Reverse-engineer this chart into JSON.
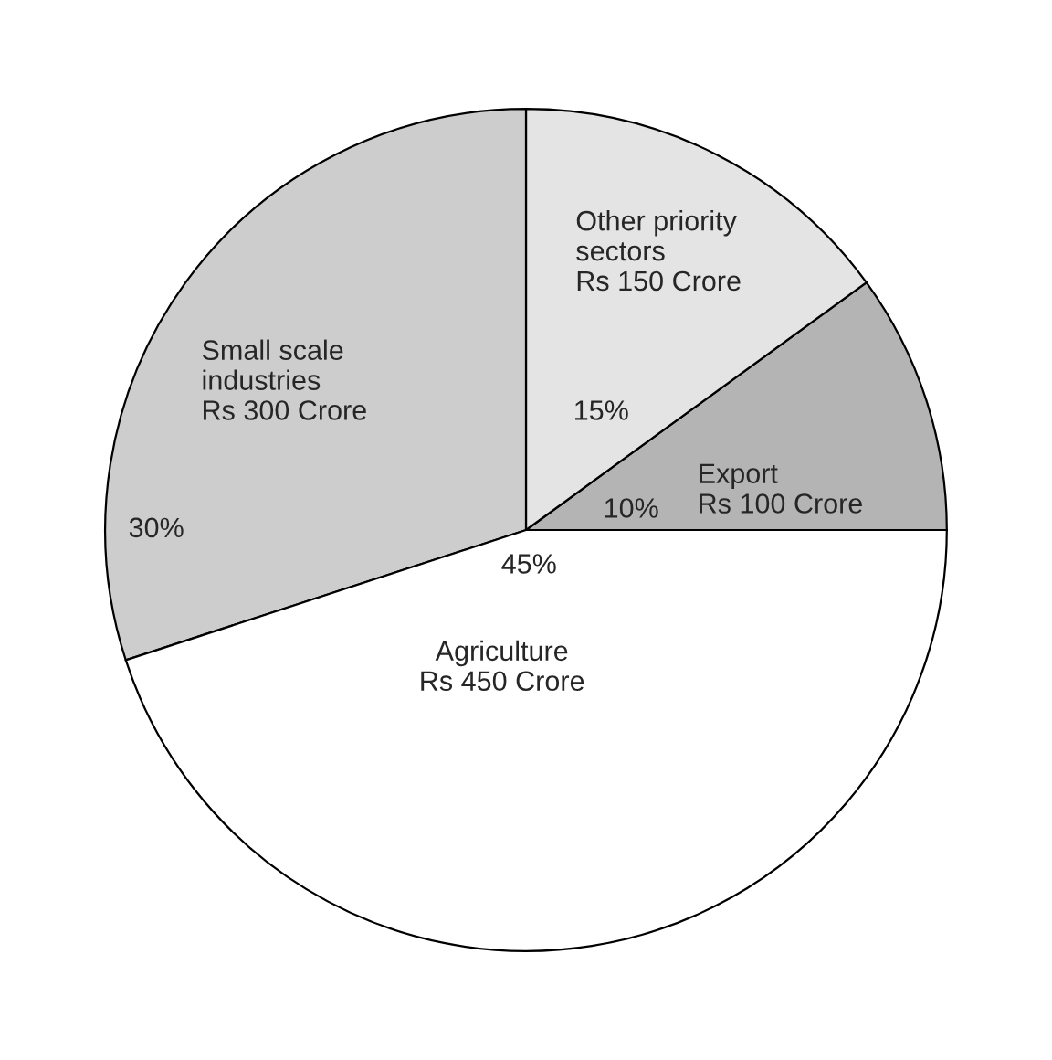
{
  "chart_data": {
    "type": "pie",
    "categories": [
      "Export\nRs 100 Crore",
      "Other priority\nsectors\nRs 150 Crore",
      "Small scale\nindustries\nRs 300 Crore",
      "Agriculture\nRs 450 Crore"
    ],
    "values": [
      10,
      15,
      30,
      45
    ],
    "value_labels": [
      "10%",
      "15%",
      "30%",
      "45%"
    ],
    "colors": [
      "#b4b4b4",
      "#e4e4e4",
      "#cdcdcd",
      "#ffffff"
    ]
  }
}
